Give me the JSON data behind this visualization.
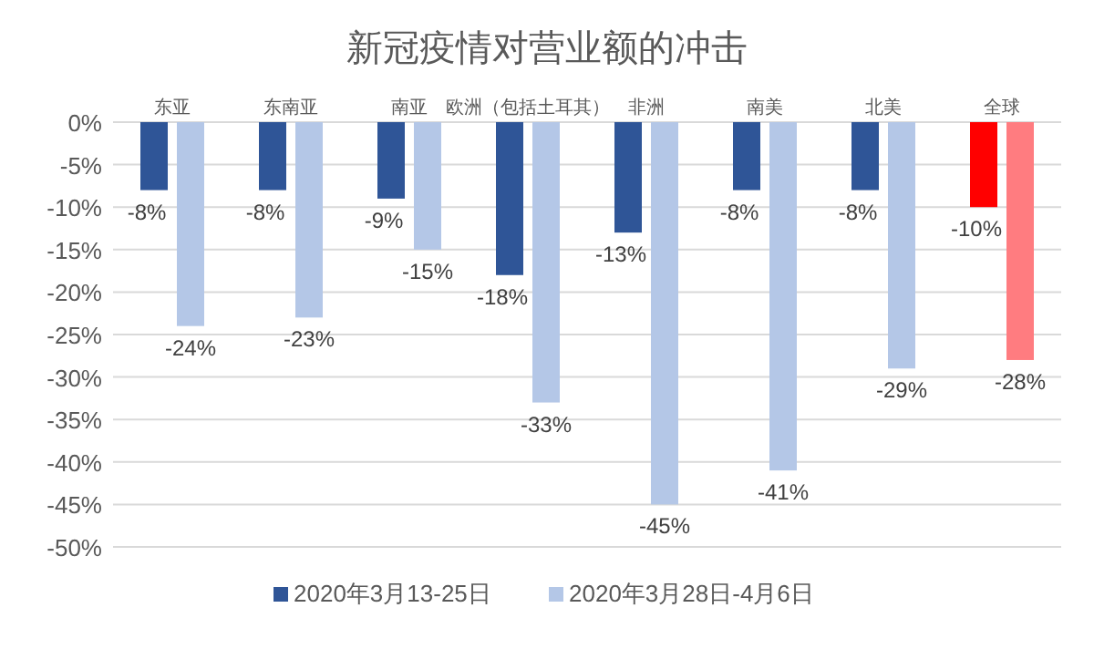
{
  "chart_data": {
    "type": "bar",
    "title": "新冠疫情对营业额的冲击",
    "categories": [
      "东亚",
      "东南亚",
      "南亚",
      "欧洲（包括土耳其）",
      "非洲",
      "南美",
      "北美",
      "全球"
    ],
    "series": [
      {
        "name": "2020年3月13-25日",
        "color": "#2f5597",
        "colors": [
          "#2f5597",
          "#2f5597",
          "#2f5597",
          "#2f5597",
          "#2f5597",
          "#2f5597",
          "#2f5597",
          "#ff0000"
        ],
        "values": [
          -8,
          -8,
          -9,
          -18,
          -13,
          -8,
          -8,
          -10
        ],
        "value_labels": [
          "-8%",
          "-8%",
          "-9%",
          "-18%",
          "-13%",
          "-8%",
          "-8%",
          "-10%"
        ]
      },
      {
        "name": "2020年3月28日-4月6日",
        "color": "#b4c7e7",
        "colors": [
          "#b4c7e7",
          "#b4c7e7",
          "#b4c7e7",
          "#b4c7e7",
          "#b4c7e7",
          "#b4c7e7",
          "#b4c7e7",
          "#ff7c80"
        ],
        "values": [
          -24,
          -23,
          -15,
          -33,
          -45,
          -41,
          -29,
          -28
        ],
        "value_labels": [
          "-24%",
          "-23%",
          "-15%",
          "-33%",
          "-45%",
          "-41%",
          "-29%",
          "-28%"
        ]
      }
    ],
    "ylim": [
      -50,
      0
    ],
    "yticks": [
      {
        "value": 0,
        "label": "0%"
      },
      {
        "value": -5,
        "label": "-5%"
      },
      {
        "value": -10,
        "label": "-10%"
      },
      {
        "value": -15,
        "label": "-15%"
      },
      {
        "value": -20,
        "label": "-20%"
      },
      {
        "value": -25,
        "label": "-25%"
      },
      {
        "value": -30,
        "label": "-30%"
      },
      {
        "value": -35,
        "label": "-35%"
      },
      {
        "value": -40,
        "label": "-40%"
      },
      {
        "value": -45,
        "label": "-45%"
      },
      {
        "value": -50,
        "label": "-50%"
      }
    ],
    "grid": "y",
    "legend": "bottom"
  }
}
